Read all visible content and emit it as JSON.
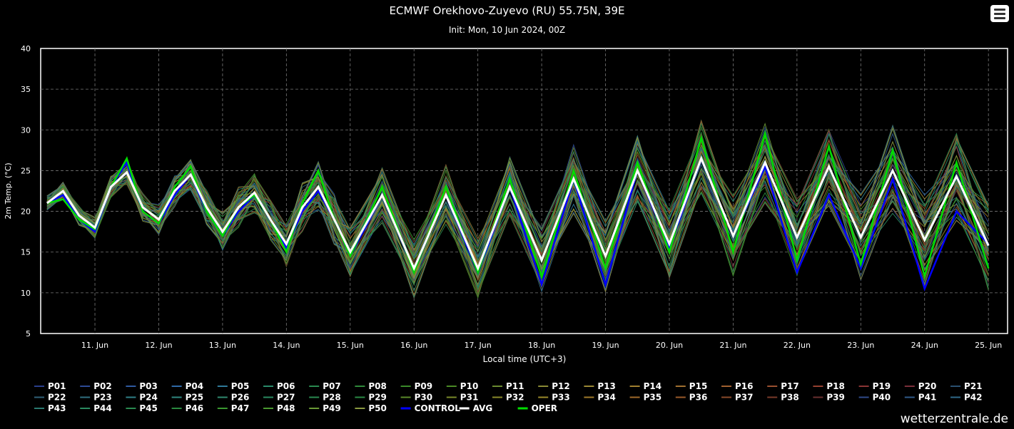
{
  "header": {
    "title": "ECMWF Orekhovo-Zuyevo (RU) 55.75N, 39E",
    "subtitle": "Init: Mon, 10 Jun 2024, 00Z",
    "menu_icon": "hamburger-menu-icon"
  },
  "credit": "wetterzentrale.de",
  "chart_data": {
    "type": "line",
    "title": "ECMWF Orekhovo-Zuyevo (RU) 55.75N, 39E",
    "subtitle": "Init: Mon, 10 Jun 2024, 00Z",
    "xlabel": "Local time (UTC+3)",
    "ylabel": "2m Temp. (°C)",
    "ylim": [
      5,
      40
    ],
    "yticks": [
      5,
      10,
      15,
      20,
      25,
      30,
      35,
      40
    ],
    "x_tick_labels": [
      "11. Jun",
      "12. Jun",
      "13. Jun",
      "14. Jun",
      "15. Jun",
      "16. Jun",
      "17. Jun",
      "18. Jun",
      "19. Jun",
      "20. Jun",
      "21. Jun",
      "22. Jun",
      "23. Jun",
      "24. Jun",
      "25. Jun"
    ],
    "x_tick_days": [
      11,
      12,
      13,
      14,
      15,
      16,
      17,
      18,
      19,
      20,
      21,
      22,
      23,
      24,
      25
    ],
    "x_range_days": [
      10.15,
      25.3
    ],
    "grid": true,
    "legend_position": "bottom",
    "x_days": [
      10.25,
      10.5,
      10.75,
      11.0,
      11.25,
      11.5,
      11.75,
      12.0,
      12.25,
      12.5,
      12.75,
      13.0,
      13.25,
      13.5,
      13.75,
      14.0,
      14.25,
      14.5,
      14.75,
      15.0,
      15.5,
      16.0,
      16.5,
      17.0,
      17.5,
      18.0,
      18.5,
      19.0,
      19.5,
      20.0,
      20.5,
      21.0,
      21.5,
      22.0,
      22.5,
      23.0,
      23.5,
      24.0,
      24.5,
      25.0
    ],
    "members_label_prefix": "P",
    "members_count": 50,
    "member_colors": [
      "#2a3f8c",
      "#2d4a95",
      "#2f5aa0",
      "#2f6aa8",
      "#2f7a9a",
      "#2a8a6a",
      "#2a8a50",
      "#2f8a3a",
      "#3a8a2a",
      "#4a8a25",
      "#6a8a30",
      "#8a8a35",
      "#9a8835",
      "#a08030",
      "#a07030",
      "#a06030",
      "#9a5030",
      "#954030",
      "#8a3535",
      "#7a2f3a",
      "#2a5070",
      "#2f6078",
      "#2f7080",
      "#2f8088",
      "#2f8880",
      "#2f8a70",
      "#2a8a60",
      "#2a8a50",
      "#2a8a45",
      "#5a8a2a",
      "#7a8a2a",
      "#8a8a2a",
      "#9a8a2a",
      "#a07a2a",
      "#a06a2a",
      "#9a5a2a",
      "#8a4a2a",
      "#7a3a2a",
      "#6a2f2f",
      "#2f4a8a",
      "#2f5a8a",
      "#2f6a8a",
      "#2a7a70",
      "#2a8a60",
      "#2a8a50",
      "#2a8a40",
      "#3a9a30",
      "#4a9a30",
      "#6a9a35",
      "#8a9a40"
    ],
    "series": [
      {
        "name": "CONTROL",
        "color": "#0000ff",
        "values": [
          21,
          22,
          19,
          17.5,
          23,
          26,
          20,
          18.5,
          22,
          24.5,
          20,
          17,
          20,
          22,
          19,
          15.5,
          20,
          22.5,
          19,
          14.5,
          22,
          13,
          22,
          12.5,
          23,
          11,
          24,
          11,
          25,
          15.5,
          26.5,
          17,
          25.5,
          12.5,
          22,
          13,
          24,
          10.5,
          20,
          16
        ]
      },
      {
        "name": "AVG",
        "color": "#ffffff",
        "values": [
          21,
          22.5,
          19.5,
          18,
          23,
          24.8,
          20.5,
          19,
          22.5,
          24.5,
          20.5,
          17.5,
          20.5,
          22.3,
          19,
          16,
          20.5,
          23,
          19,
          15,
          22,
          13,
          22,
          13,
          23,
          14,
          24,
          14.5,
          25,
          16,
          26.5,
          17,
          26,
          16.8,
          25.5,
          16.8,
          25,
          16.5,
          24.3,
          15.8
        ]
      },
      {
        "name": "OPER",
        "color": "#00dd00",
        "values": [
          21,
          21.5,
          19,
          17.8,
          23,
          26.5,
          20,
          18.5,
          23,
          25.5,
          20,
          17,
          20.5,
          22,
          19,
          15,
          21,
          25,
          19,
          14.5,
          23,
          12.5,
          23,
          12.5,
          24,
          12,
          25,
          13,
          26,
          15,
          29,
          15,
          29.5,
          14,
          28,
          13.5,
          27.5,
          12,
          26,
          13
        ]
      }
    ],
    "legend": [
      "P01",
      "P02",
      "P03",
      "P04",
      "P05",
      "P06",
      "P07",
      "P08",
      "P09",
      "P10",
      "P11",
      "P12",
      "P13",
      "P14",
      "P15",
      "P16",
      "P17",
      "P18",
      "P19",
      "P20",
      "P21",
      "P22",
      "P23",
      "P24",
      "P25",
      "P26",
      "P27",
      "P28",
      "P29",
      "P30",
      "P31",
      "P32",
      "P33",
      "P34",
      "P35",
      "P36",
      "P37",
      "P38",
      "P39",
      "P40",
      "P41",
      "P42",
      "P43",
      "P44",
      "P45",
      "P46",
      "P47",
      "P48",
      "P49",
      "P50",
      "CONTROL",
      "AVG",
      "OPER"
    ]
  }
}
